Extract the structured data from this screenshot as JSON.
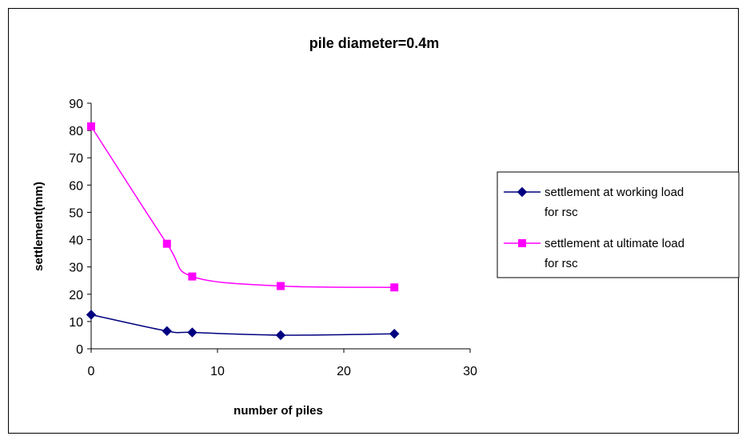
{
  "chart_data": {
    "type": "line",
    "title": "pile diameter=0.4m",
    "xlabel": "number of piles",
    "ylabel": "settlement(mm)",
    "xlim": [
      0,
      30
    ],
    "ylim": [
      0,
      90
    ],
    "x_ticks": [
      "0",
      "10",
      "20",
      "30"
    ],
    "y_ticks": [
      "0",
      "10",
      "20",
      "30",
      "40",
      "50",
      "60",
      "70",
      "80",
      "90"
    ],
    "grid": false,
    "legend_position": "right",
    "series": [
      {
        "name_line1": "settlement at working load",
        "name_line2": "for rsc",
        "name": "settlement at working load for rsc",
        "color": "#000080",
        "marker": "diamond",
        "x": [
          0,
          6,
          8,
          15,
          24
        ],
        "y": [
          12.5,
          6.5,
          6,
          5,
          5.5
        ]
      },
      {
        "name_line1": "settlement at ultimate load",
        "name_line2": "for rsc",
        "name": "settlement at ultimate load for rsc",
        "color": "#FF00FF",
        "marker": "square",
        "x": [
          0,
          6,
          8,
          15,
          24
        ],
        "y": [
          81.5,
          38.5,
          26.5,
          23,
          22.5
        ]
      }
    ]
  }
}
